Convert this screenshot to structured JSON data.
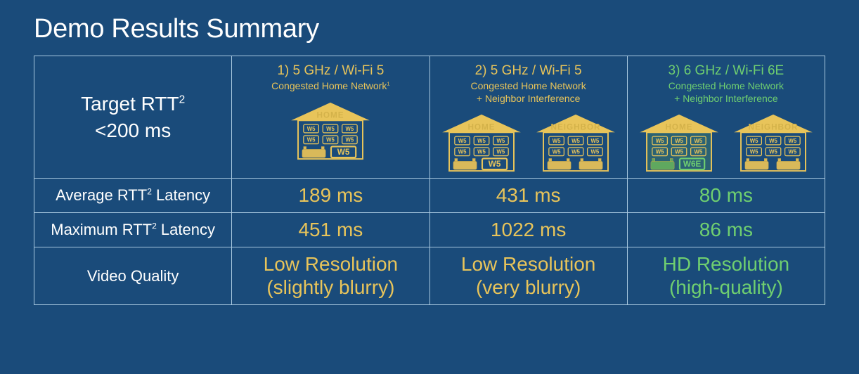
{
  "slide": {
    "title": "Demo Results Summary",
    "background_color": "#1a4b7a",
    "border_color": "#a8c8e0"
  },
  "target": {
    "line1": "Target RTT",
    "sup": "2",
    "line2": "<200 ms"
  },
  "columns": [
    {
      "header_title": "1) 5 GHz / Wi-Fi 5",
      "header_sub_line1": "Congested Home Network",
      "header_sub_sup": "1",
      "header_sub_line2": "",
      "header_color": "#e8c45a",
      "houses": [
        {
          "label": "HOME",
          "wifi_label": "W5",
          "wifi_big": "W5",
          "highlight_router": true,
          "green": false
        }
      ],
      "avg": "189 ms",
      "max": "451 ms",
      "quality_line1": "Low Resolution",
      "quality_line2": "(slightly blurry)",
      "value_color": "#e8c45a"
    },
    {
      "header_title": "2) 5 GHz / Wi-Fi 5",
      "header_sub_line1": "Congested Home Network",
      "header_sub_sup": "",
      "header_sub_line2": "+ Neighbor Interference",
      "header_color": "#e8c45a",
      "houses": [
        {
          "label": "HOME",
          "wifi_label": "W5",
          "wifi_big": "W5",
          "highlight_router": true,
          "green": false
        },
        {
          "label": "NEIGHBOR",
          "wifi_label": "W5",
          "wifi_big": "",
          "highlight_router": false,
          "green": false
        }
      ],
      "avg": "431 ms",
      "max": "1022 ms",
      "quality_line1": "Low Resolution",
      "quality_line2": "(very blurry)",
      "value_color": "#e8c45a"
    },
    {
      "header_title": "3) 6 GHz / Wi-Fi 6E",
      "header_sub_line1": "Congested Home Network",
      "header_sub_sup": "",
      "header_sub_line2": "+ Neighbor Interference",
      "header_color": "#6fcf70",
      "houses": [
        {
          "label": "HOME",
          "wifi_label": "W5",
          "wifi_big": "W6E",
          "highlight_router": true,
          "green": true
        },
        {
          "label": "NEIGHBOR",
          "wifi_label": "W5",
          "wifi_big": "",
          "highlight_router": false,
          "green": false
        }
      ],
      "avg": "80 ms",
      "max": "86 ms",
      "quality_line1": "HD Resolution",
      "quality_line2": "(high-quality)",
      "value_color": "#6fcf70"
    }
  ],
  "rows": {
    "avg_pre": "Average RTT",
    "avg_sup": "2",
    "avg_post": " Latency",
    "max_pre": "Maximum RTT",
    "max_sup": "2",
    "max_post": " Latency",
    "quality": "Video Quality"
  },
  "styling": {
    "title_fontsize": 38,
    "header_fontsize": 19,
    "subheader_fontsize": 14,
    "value_fontsize": 28,
    "rowlabel_fontsize": 22,
    "font_weight": 300
  }
}
